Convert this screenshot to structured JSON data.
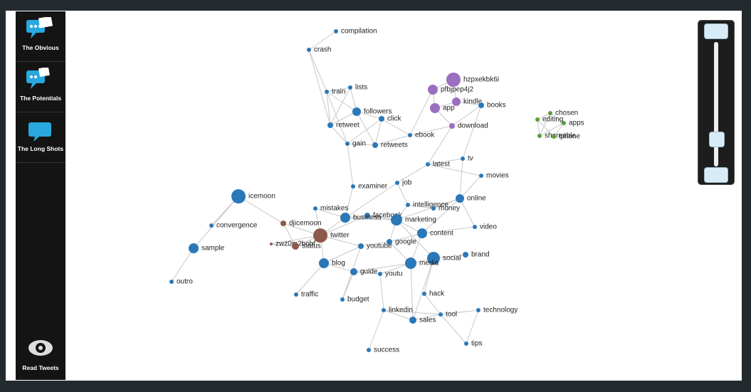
{
  "sidebar": {
    "items": [
      "The Obvious",
      "The Potentials",
      "The Long Shots"
    ],
    "footer": "Read Tweets"
  },
  "graph": {
    "nodes": [
      {
        "label": "compilation",
        "color": "#2a78b8"
      },
      {
        "label": "crash",
        "color": "#2a78b8"
      },
      {
        "label": "train",
        "color": "#2a78b8"
      },
      {
        "label": "lists",
        "color": "#2a78b8"
      },
      {
        "label": "followers",
        "color": "#2a78b8"
      },
      {
        "label": "click",
        "color": "#2a78b8"
      },
      {
        "label": "retweet",
        "color": "#2a78b8"
      },
      {
        "label": "gain",
        "color": "#2a78b8"
      },
      {
        "label": "retweets",
        "color": "#2a78b8"
      },
      {
        "label": "hzpxekbk6i",
        "color": "#9b6fc0"
      },
      {
        "label": "pfbjpep4j2",
        "color": "#9b6fc0"
      },
      {
        "label": "kindle",
        "color": "#9b6fc0"
      },
      {
        "label": "app",
        "color": "#9b6fc0"
      },
      {
        "label": "books",
        "color": "#2a78b8"
      },
      {
        "label": "download",
        "color": "#9b6fc0"
      },
      {
        "label": "ebook",
        "color": "#2a78b8"
      },
      {
        "label": "chosen",
        "color": "#5a9e3a"
      },
      {
        "label": "editing",
        "color": "#5a9e3a"
      },
      {
        "label": "apps",
        "color": "#5a9e3a"
      },
      {
        "label": "shareable",
        "color": "#5a9e3a"
      },
      {
        "label": "iphone",
        "color": "#5a9e3a"
      },
      {
        "label": "tv",
        "color": "#2a78b8"
      },
      {
        "label": "latest",
        "color": "#2a78b8"
      },
      {
        "label": "movies",
        "color": "#2a78b8"
      },
      {
        "label": "examiner",
        "color": "#2a78b8"
      },
      {
        "label": "job",
        "color": "#2a78b8"
      },
      {
        "label": "icemoon",
        "color": "#2a78b8"
      },
      {
        "label": "online",
        "color": "#2a78b8"
      },
      {
        "label": "intelligence",
        "color": "#2a78b8"
      },
      {
        "label": "money",
        "color": "#2a78b8"
      },
      {
        "label": "mistakes",
        "color": "#2a78b8"
      },
      {
        "label": "facebook",
        "color": "#2a78b8"
      },
      {
        "label": "business",
        "color": "#2a78b8"
      },
      {
        "label": "marketing",
        "color": "#2a78b8"
      },
      {
        "label": "djicemoon",
        "color": "#8c5a4b"
      },
      {
        "label": "convergence",
        "color": "#2a78b8"
      },
      {
        "label": "video",
        "color": "#2a78b8"
      },
      {
        "label": "content",
        "color": "#2a78b8"
      },
      {
        "label": "twitter",
        "color": "#8c5a4b"
      },
      {
        "label": "zwz0m2bobf",
        "color": "#8c5a4b"
      },
      {
        "label": "status",
        "color": "#8c5a4b"
      },
      {
        "label": "google",
        "color": "#2a78b8"
      },
      {
        "label": "youtube",
        "color": "#2a78b8"
      },
      {
        "label": "sample",
        "color": "#2a78b8"
      },
      {
        "label": "brand",
        "color": "#2a78b8"
      },
      {
        "label": "social",
        "color": "#2a78b8"
      },
      {
        "label": "media",
        "color": "#2a78b8"
      },
      {
        "label": "blog",
        "color": "#2a78b8"
      },
      {
        "label": "guide",
        "color": "#2a78b8"
      },
      {
        "label": "youtu",
        "color": "#2a78b8"
      },
      {
        "label": "outro",
        "color": "#2a78b8"
      },
      {
        "label": "traffic",
        "color": "#2a78b8"
      },
      {
        "label": "hack",
        "color": "#2a78b8"
      },
      {
        "label": "budget",
        "color": "#2a78b8"
      },
      {
        "label": "linkedin",
        "color": "#2a78b8"
      },
      {
        "label": "tool",
        "color": "#2a78b8"
      },
      {
        "label": "technology",
        "color": "#2a78b8"
      },
      {
        "label": "sales",
        "color": "#2a78b8"
      },
      {
        "label": "tips",
        "color": "#2a78b8"
      },
      {
        "label": "success",
        "color": "#2a78b8"
      }
    ]
  }
}
